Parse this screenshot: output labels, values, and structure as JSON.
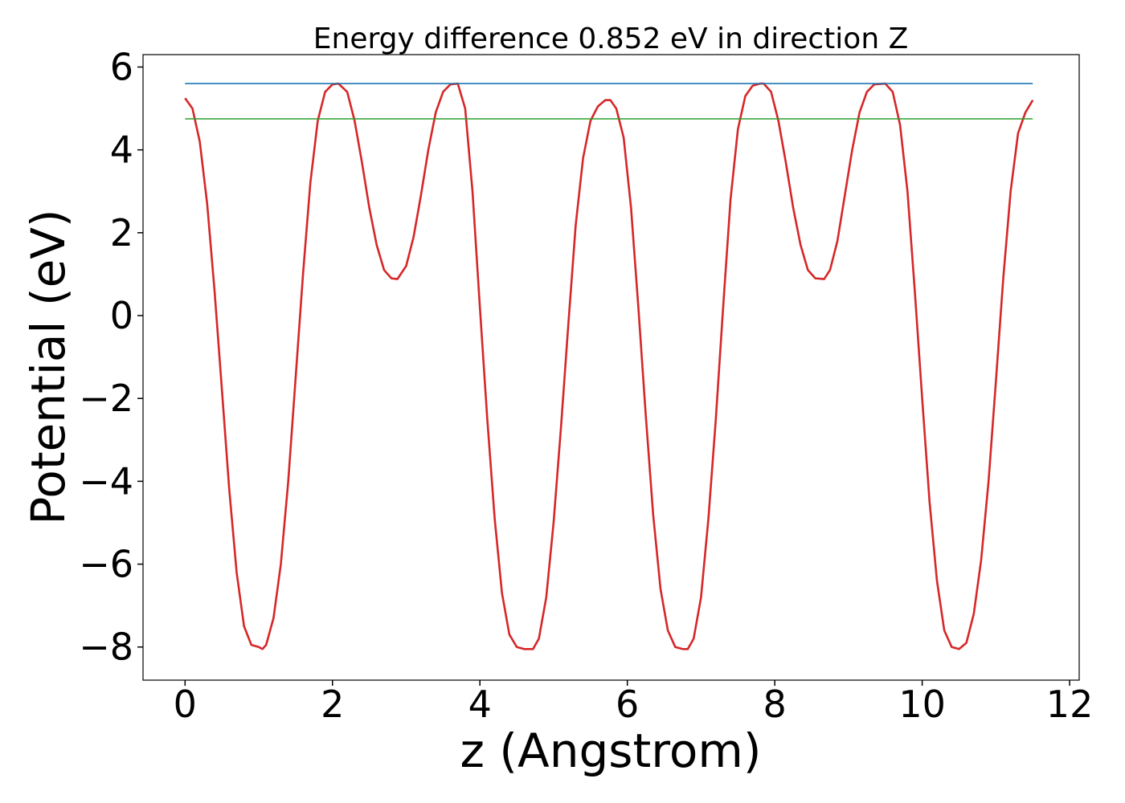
{
  "chart_data": {
    "type": "line",
    "title": "Energy difference 0.852 eV in direction Z",
    "xlabel": "z (Angstrom)",
    "ylabel": "Potential (eV)",
    "xlim": [
      -0.57,
      12.13
    ],
    "ylim": [
      -8.8,
      6.3
    ],
    "xticks": [
      0,
      2,
      4,
      6,
      8,
      10,
      12
    ],
    "xtick_labels": [
      "0",
      "2",
      "4",
      "6",
      "8",
      "10",
      "12"
    ],
    "yticks": [
      -8,
      -6,
      -4,
      -2,
      0,
      2,
      4,
      6
    ],
    "ytick_labels": [
      "−8",
      "−6",
      "−4",
      "−2",
      "0",
      "2",
      "4",
      "6"
    ],
    "grid": false,
    "series": [
      {
        "color": "#d62728",
        "x": [
          0,
          0.1,
          0.2,
          0.3,
          0.4,
          0.5,
          0.6,
          0.7,
          0.8,
          0.9,
          1.0,
          1.05,
          1.1,
          1.2,
          1.3,
          1.4,
          1.5,
          1.6,
          1.7,
          1.8,
          1.9,
          2.0,
          2.08,
          2.2,
          2.3,
          2.4,
          2.5,
          2.6,
          2.7,
          2.8,
          2.88,
          3.0,
          3.1,
          3.2,
          3.3,
          3.4,
          3.5,
          3.6,
          3.7,
          3.8,
          3.9,
          4.0,
          4.1,
          4.2,
          4.3,
          4.4,
          4.5,
          4.6,
          4.72,
          4.8,
          4.9,
          5.0,
          5.1,
          5.2,
          5.3,
          5.4,
          5.5,
          5.6,
          5.7,
          5.77,
          5.85,
          5.95,
          6.05,
          6.15,
          6.25,
          6.35,
          6.45,
          6.55,
          6.65,
          6.75,
          6.82,
          6.9,
          7.0,
          7.1,
          7.2,
          7.3,
          7.4,
          7.5,
          7.6,
          7.7,
          7.8,
          7.85,
          7.95,
          8.05,
          8.15,
          8.25,
          8.35,
          8.45,
          8.55,
          8.67,
          8.75,
          8.85,
          8.95,
          9.05,
          9.15,
          9.25,
          9.35,
          9.5,
          9.6,
          9.7,
          9.8,
          9.9,
          10.0,
          10.1,
          10.2,
          10.3,
          10.4,
          10.5,
          10.6,
          10.7,
          10.8,
          10.9,
          11.0,
          11.1,
          11.2,
          11.3,
          11.4,
          11.5
        ],
        "y": [
          5.25,
          5.0,
          4.2,
          2.7,
          0.6,
          -1.8,
          -4.2,
          -6.2,
          -7.5,
          -7.95,
          -8.0,
          -8.05,
          -7.95,
          -7.3,
          -6.0,
          -4.0,
          -1.5,
          1.0,
          3.2,
          4.7,
          5.4,
          5.58,
          5.6,
          5.4,
          4.7,
          3.7,
          2.6,
          1.7,
          1.1,
          0.9,
          0.88,
          1.2,
          1.9,
          2.9,
          4.0,
          4.9,
          5.4,
          5.58,
          5.6,
          5.0,
          3.0,
          0.2,
          -2.5,
          -4.9,
          -6.7,
          -7.7,
          -8.0,
          -8.05,
          -8.05,
          -7.8,
          -6.8,
          -5.0,
          -2.7,
          -0.2,
          2.2,
          3.8,
          4.7,
          5.05,
          5.2,
          5.2,
          5.0,
          4.3,
          2.6,
          0.2,
          -2.4,
          -4.8,
          -6.6,
          -7.6,
          -8.0,
          -8.05,
          -8.05,
          -7.8,
          -6.8,
          -4.9,
          -2.5,
          0.2,
          2.8,
          4.5,
          5.3,
          5.55,
          5.6,
          5.6,
          5.4,
          4.7,
          3.7,
          2.6,
          1.7,
          1.1,
          0.9,
          0.88,
          1.1,
          1.8,
          2.9,
          4.0,
          4.9,
          5.4,
          5.58,
          5.6,
          5.4,
          4.6,
          3.0,
          0.6,
          -2.0,
          -4.5,
          -6.4,
          -7.6,
          -8.0,
          -8.05,
          -7.9,
          -7.2,
          -5.9,
          -4.0,
          -1.6,
          0.9,
          3.0,
          4.4,
          4.9,
          5.2
        ]
      },
      {
        "color": "#1f77b4",
        "x": [
          0,
          11.5
        ],
        "y": [
          5.6,
          5.6
        ]
      },
      {
        "color": "#2ca02c",
        "x": [
          0,
          11.5
        ],
        "y": [
          4.75,
          4.75
        ]
      }
    ]
  }
}
